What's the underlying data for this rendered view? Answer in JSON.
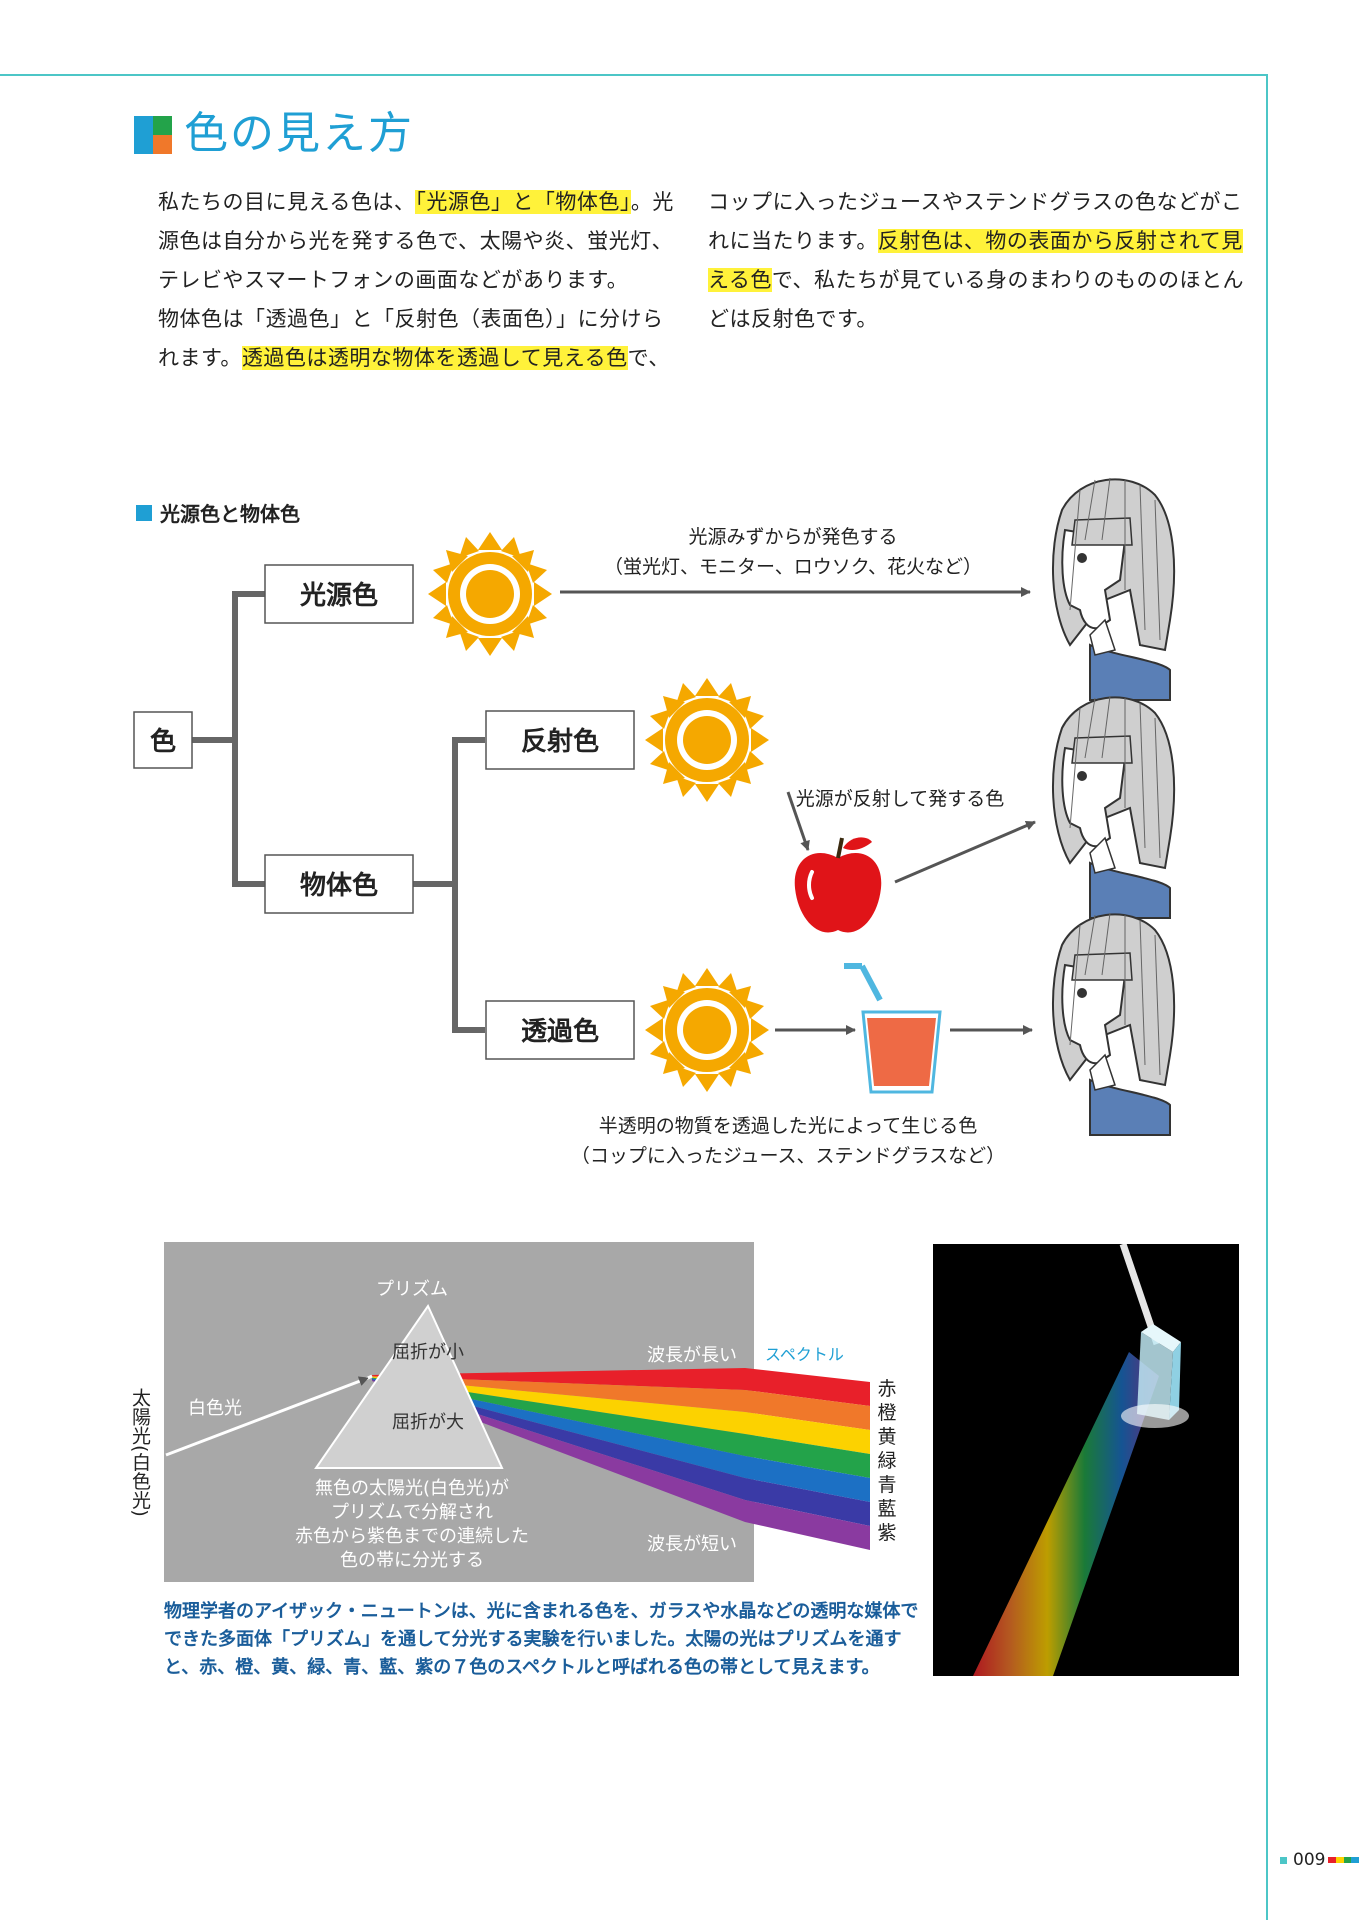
{
  "title": "色の見え方",
  "intro": {
    "left": {
      "p1_a": "私たちの目に見える色は、",
      "p1_hl": "「光源色」と「物体色」",
      "p1_b": "。光源色は自分から光を発する色で、太陽や炎、蛍光灯、テレビやスマートフォンの画面などがあります。",
      "p2_a": "物体色は「透過色」と「反射色（表面色）」に分けられます。",
      "p2_hl": "透過色は透明な物体を透過して見える色",
      "p2_b": "で、"
    },
    "right": {
      "a": "コップに入ったジュースやステンドグラスの色などがこれに当たります。",
      "hl": "反射色は、物の表面から反射されて見える色",
      "b": "で、私たちが見ている身のまわりのもののほとんどは反射色です。"
    }
  },
  "section_label": "光源色と物体色",
  "diagram": {
    "root": "色",
    "light_source": "光源色",
    "object_color": "物体色",
    "reflected": "反射色",
    "transmitted": "透過色",
    "ls_caption_1": "光源みずからが発色する",
    "ls_caption_2": "（蛍光灯、モニター、ロウソク、花火など）",
    "refl_caption": "光源が反射して発する色",
    "trans_caption_1": "半透明の物質を透過した光によって生じる色",
    "trans_caption_2": "（コップに入ったジュース、ステンドグラスなど）"
  },
  "prism": {
    "prism_label": "プリズム",
    "refr_small": "屈折が小",
    "refr_large": "屈折が大",
    "white_light": "白色光",
    "sunlight_vertical": "太陽光(白色光)",
    "long_wave": "波長が長い",
    "short_wave": "波長が短い",
    "spectrum": "スペクトル",
    "desc_1": "無色の太陽光(白色光)が",
    "desc_2": "プリズムで分解され",
    "desc_3": "赤色から紫色までの連続した",
    "desc_4": "色の帯に分光する",
    "colors": [
      "赤",
      "橙",
      "黄",
      "緑",
      "青",
      "藍",
      "紫"
    ],
    "band_colors": [
      "#e8202a",
      "#f0782a",
      "#fcd200",
      "#23a34a",
      "#1c70c4",
      "#3a3aa6",
      "#8a3aa0"
    ]
  },
  "caption": "物理学者のアイザック・ニュートンは、光に含まれる色を、ガラスや水晶などの透明な媒体でできた多面体「プリズム」を通して分光する実験を行いました。太陽の光はプリズムを通すと、赤、橙、黄、緑、青、藍、紫の７色のスペクトルと呼ばれる色の帯として見えます。",
  "page_number": "009",
  "accent_colors": {
    "teal": "#4cc6c7",
    "blue": "#1f9fd4",
    "highlight": "#fff23a",
    "sun": "#f5a800"
  }
}
